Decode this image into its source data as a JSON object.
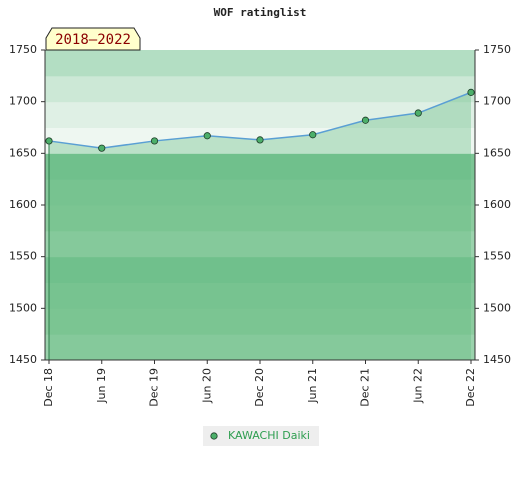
{
  "chart_data": {
    "type": "line",
    "title": "WOF ratinglist",
    "annotation": "2018–2022",
    "categories": [
      "Dec 18",
      "Jun 19",
      "Dec 19",
      "Jun 20",
      "Dec 20",
      "Jun 21",
      "Dec 21",
      "Jun 22",
      "Dec 22"
    ],
    "series": [
      {
        "name": "KAWACHI Daiki",
        "color": "#5a9fd4",
        "marker_color": "#4caf6a",
        "values": [
          1662,
          1655,
          1662,
          1667,
          1663,
          1668,
          1682,
          1689,
          1709
        ]
      }
    ],
    "ylim": [
      1450,
      1750
    ],
    "yticks": [
      1450,
      1500,
      1550,
      1600,
      1650,
      1700,
      1750
    ],
    "legend": "bottom"
  }
}
